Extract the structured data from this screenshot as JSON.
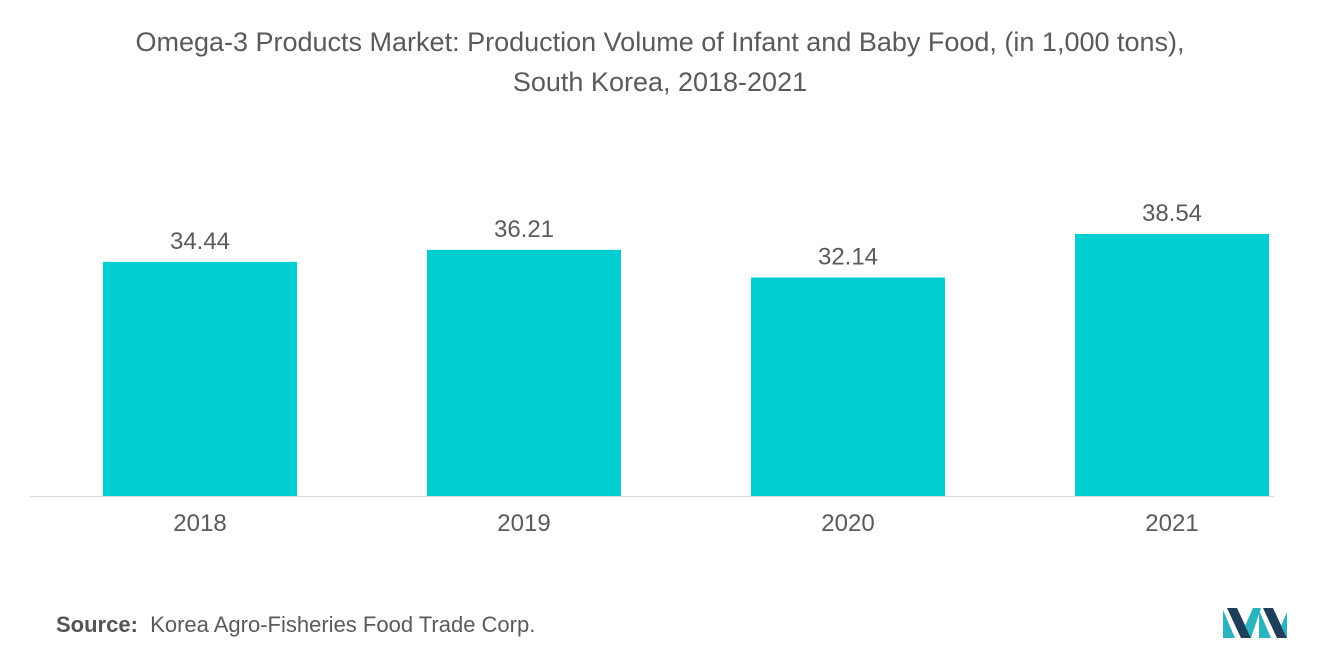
{
  "chart_data": {
    "type": "bar",
    "title": "Omega-3 Products Market: Production Volume of Infant and Baby Food, (in 1,000 tons),",
    "subtitle": "South Korea, 2018-2021",
    "categories": [
      "2018",
      "2019",
      "2020",
      "2021"
    ],
    "values": [
      34.44,
      36.21,
      32.14,
      38.54
    ],
    "value_labels": [
      "34.44",
      "36.21",
      "32.14",
      "38.54"
    ],
    "xlabel": "",
    "ylabel": "",
    "ylim": [
      0,
      38.54
    ],
    "grid": false,
    "legend": "none",
    "bar_color": "#00CED1"
  },
  "source": {
    "label": "Source:",
    "text": "Korea Agro-Fisheries Food Trade Corp."
  },
  "colors": {
    "text": "#5a5a5a",
    "axis": "#d9d9d9",
    "logo_dark": "#1e3f5a",
    "logo_teal": "#2bb3c0"
  }
}
